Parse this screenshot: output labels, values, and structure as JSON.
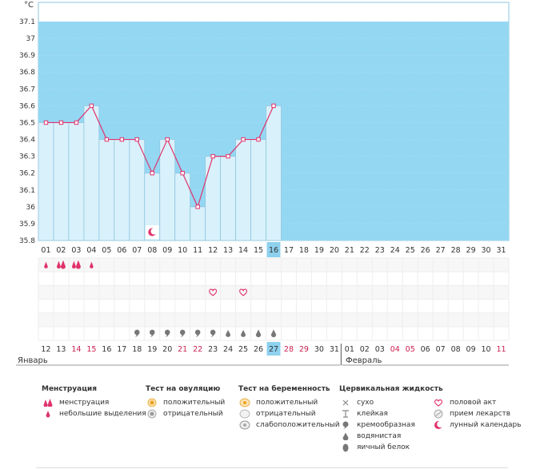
{
  "chart_data": {
    "type": "line",
    "ylabel": "°C",
    "y_ticks": [
      "37.1",
      "37",
      "36.9",
      "36.8",
      "36.7",
      "36.6",
      "36.5",
      "36.4",
      "36.3",
      "36.2",
      "36.1",
      "36",
      "35.9",
      "35.8"
    ],
    "ylim": [
      35.8,
      37.1
    ],
    "cycle_days": [
      "01",
      "02",
      "03",
      "04",
      "05",
      "06",
      "07",
      "08",
      "09",
      "10",
      "11",
      "12",
      "13",
      "14",
      "15",
      "16",
      "17",
      "18",
      "19",
      "20",
      "21",
      "22",
      "23",
      "24",
      "25",
      "26",
      "27",
      "28",
      "29",
      "30",
      "31"
    ],
    "current_cycle_day": "16",
    "temperatures": [
      36.5,
      36.5,
      36.5,
      36.6,
      36.4,
      36.4,
      36.4,
      36.2,
      36.4,
      36.2,
      36.0,
      36.3,
      36.3,
      36.4,
      36.4,
      36.6
    ],
    "calendar_dates": [
      "12",
      "13",
      "14",
      "15",
      "16",
      "17",
      "18",
      "19",
      "20",
      "21",
      "22",
      "23",
      "24",
      "25",
      "26",
      "27",
      "28",
      "29",
      "30",
      "31",
      "01",
      "02",
      "03",
      "04",
      "05",
      "06",
      "07",
      "08",
      "09",
      "10",
      "11"
    ],
    "weekend_indices": [
      2,
      3,
      9,
      10,
      16,
      17,
      23,
      24,
      30
    ],
    "today_index": 15,
    "month_start_index": 20,
    "months": [
      "Январь",
      "Февраль"
    ],
    "moon_day_index": 7,
    "menstruation_marks": [
      "small",
      "heavy",
      "heavy",
      "small"
    ],
    "sex_day_indices": [
      11,
      13
    ],
    "cervical_marks": [
      [
        "cream",
        6
      ],
      [
        "cream",
        7
      ],
      [
        "cream",
        8
      ],
      [
        "cream",
        9
      ],
      [
        "cream",
        10
      ],
      [
        "cream",
        11
      ],
      [
        "water",
        12
      ],
      [
        "water",
        13
      ],
      [
        "white",
        14
      ],
      [
        "white",
        15
      ]
    ],
    "colors": {
      "plot_bg": "#94d7f3",
      "bar_fill": "#d9f1fb",
      "bar_stroke": "#8fc6df",
      "line": "#e0336b",
      "today": "#8dd1ee",
      "weekend_text": "#cc1f4f",
      "icon": "#777777",
      "pink": "#e0336b"
    }
  },
  "legend": {
    "menstruation": {
      "title": "Менструация",
      "items": [
        "менструация",
        "небольшие выделения"
      ]
    },
    "ovulation": {
      "title": "Тест на овуляцию",
      "items": [
        "положительный",
        "отрицательный"
      ]
    },
    "pregnancy": {
      "title": "Тест на беременность",
      "items": [
        "положительный",
        "отрицательный",
        "слабоположительный"
      ]
    },
    "cervical": {
      "title": "Цервикальная жидкость",
      "items": [
        "сухо",
        "клейкая",
        "кремообразная",
        "водянистая",
        "яичный белок"
      ]
    },
    "other": {
      "items": [
        "половой акт",
        "прием лекарств",
        "лунный календарь"
      ]
    }
  }
}
